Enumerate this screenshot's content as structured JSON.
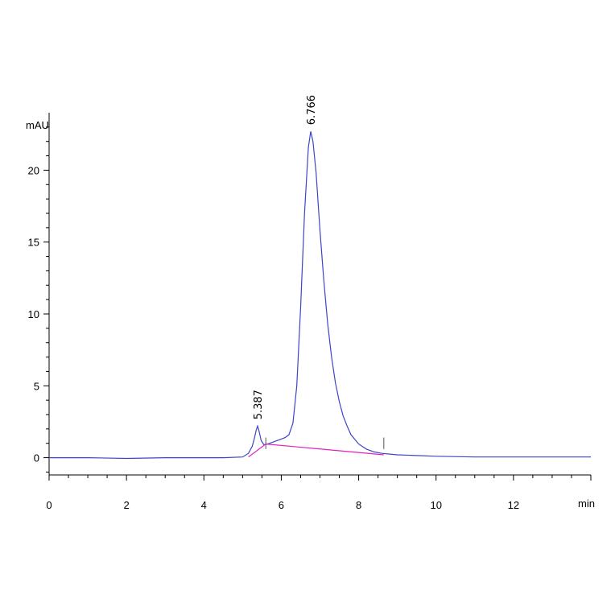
{
  "chart_data": {
    "type": "line",
    "ylabel": "mAU",
    "xlabel": "min",
    "xlim": [
      0,
      14
    ],
    "ylim": [
      -1.2,
      24
    ],
    "x_ticks": [
      0,
      2,
      4,
      6,
      8,
      10,
      12
    ],
    "y_ticks": [
      0,
      5,
      10,
      15,
      20
    ],
    "series": [
      {
        "color": "#3b45c8",
        "x": [
          0,
          1,
          2,
          3,
          4,
          4.5,
          5.0,
          5.15,
          5.25,
          5.3,
          5.35,
          5.387,
          5.43,
          5.48,
          5.55,
          5.65,
          5.8,
          6.0,
          6.1,
          6.2,
          6.3,
          6.4,
          6.5,
          6.6,
          6.7,
          6.76,
          6.82,
          6.9,
          7.0,
          7.1,
          7.2,
          7.3,
          7.4,
          7.5,
          7.6,
          7.7,
          7.8,
          8.0,
          8.2,
          8.4,
          8.6,
          8.8,
          9.0,
          9.5,
          10,
          11,
          12,
          13,
          14
        ],
        "y": [
          0,
          0,
          -0.05,
          0,
          0,
          0,
          0.05,
          0.3,
          0.8,
          1.3,
          1.9,
          2.2,
          1.8,
          1.2,
          0.9,
          0.95,
          1.1,
          1.3,
          1.4,
          1.6,
          2.4,
          5.0,
          10.5,
          17.0,
          21.6,
          22.7,
          22.0,
          19.8,
          15.8,
          12.3,
          9.3,
          7.0,
          5.2,
          3.9,
          2.9,
          2.2,
          1.6,
          0.95,
          0.6,
          0.4,
          0.3,
          0.25,
          0.2,
          0.15,
          0.1,
          0.05,
          0.05,
          0.05,
          0.05
        ]
      },
      {
        "color": "#e020c0",
        "x": [
          5.15,
          5.6,
          8.65
        ],
        "y": [
          0.05,
          0.95,
          0.2
        ]
      }
    ],
    "peak_labels": [
      {
        "x": 5.387,
        "y": 2.2,
        "text": "5.387"
      },
      {
        "x": 6.766,
        "y": 22.7,
        "text": "6.766"
      }
    ],
    "peak_markers_x": [
      5.6,
      8.65
    ]
  }
}
